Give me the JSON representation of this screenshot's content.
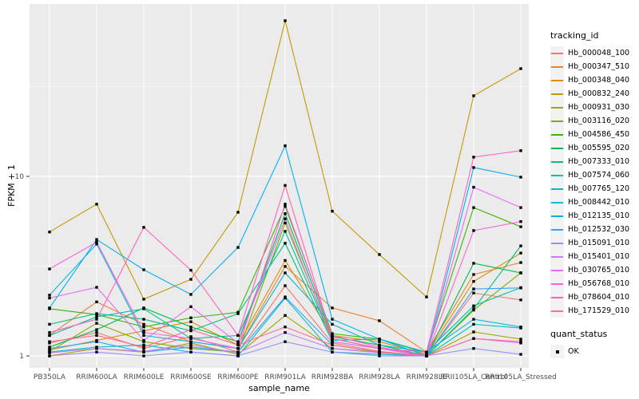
{
  "theme": {
    "outer_bg": "#FFFFFF",
    "panel_bg": "#EBEBEB",
    "grid_color": "#FFFFFF",
    "legend_key_bg": "#F2F2F2",
    "tick_label_color": "#4D4D4D",
    "tick_mark_color": "#333333",
    "point_color": "#000000"
  },
  "chart_data": {
    "type": "line",
    "title": "",
    "xlabel": "sample_name",
    "ylabel": "FPKM + 1",
    "y_scale": "log10",
    "y_tick_labels": [
      "1",
      "10"
    ],
    "y_ticks": [
      1,
      10
    ],
    "y_minor_ticks": [
      3.1623,
      31.623
    ],
    "ylim": [
      0.95,
      90
    ],
    "grid": true,
    "legend_position": "right",
    "legend_title": "tracking_id",
    "point_marker": "black-square",
    "quant_legend": {
      "title": "quant_status",
      "items": [
        "OK"
      ]
    },
    "x_categories": [
      "PB350LA",
      "RRIM600LA",
      "RRIM600LE",
      "RRIM600SE",
      "RRIM600PE",
      "RRIM901LA",
      "RRIM928BA",
      "RRIM928LA",
      "RRIM928LE",
      "RRII105LA_Control",
      "RRII105LA_Stressed"
    ],
    "series": [
      {
        "name": "Hb_000048_100",
        "color": "#F8766D",
        "values": [
          1.18,
          1.35,
          1.1,
          1.28,
          1.05,
          2.46,
          1.18,
          1.06,
          1.0,
          2.24,
          2.05
        ]
      },
      {
        "name": "Hb_000347_510",
        "color": "#EA8331",
        "values": [
          1.3,
          2.0,
          1.5,
          1.2,
          1.1,
          3.15,
          1.85,
          1.57,
          1.05,
          2.84,
          3.31
        ]
      },
      {
        "name": "Hb_000348_040",
        "color": "#D89000",
        "values": [
          1.08,
          1.22,
          1.38,
          1.55,
          1.15,
          3.4,
          1.3,
          1.2,
          1.02,
          2.6,
          3.74
        ]
      },
      {
        "name": "Hb_000832_240",
        "color": "#C09B00",
        "values": [
          4.9,
          7.0,
          2.07,
          2.67,
          6.31,
          73.6,
          6.4,
          3.67,
          2.13,
          28.1,
          39.8
        ]
      },
      {
        "name": "Hb_000931_030",
        "color": "#A3A500",
        "values": [
          1.0,
          1.1,
          1.05,
          1.18,
          1.02,
          1.68,
          1.1,
          1.05,
          1.0,
          1.36,
          1.24
        ]
      },
      {
        "name": "Hb_003116_020",
        "color": "#7CAE00",
        "values": [
          1.06,
          1.52,
          1.2,
          1.1,
          1.05,
          5.5,
          1.25,
          1.1,
          1.0,
          1.8,
          2.9
        ]
      },
      {
        "name": "Hb_004586_450",
        "color": "#39B600",
        "values": [
          1.83,
          1.7,
          1.45,
          1.63,
          1.75,
          6.8,
          1.33,
          1.24,
          1.04,
          6.7,
          5.24
        ]
      },
      {
        "name": "Hb_005595_020",
        "color": "#00BB4E",
        "values": [
          1.12,
          1.4,
          1.85,
          1.45,
          1.2,
          6.2,
          1.28,
          1.15,
          1.0,
          3.28,
          2.9
        ]
      },
      {
        "name": "Hb_007333_010",
        "color": "#00BF7D",
        "values": [
          1.5,
          1.72,
          1.6,
          1.38,
          1.72,
          4.24,
          1.2,
          1.1,
          1.0,
          1.83,
          4.1
        ]
      },
      {
        "name": "Hb_007574_060",
        "color": "#00C1A3",
        "values": [
          1.3,
          1.65,
          1.83,
          1.25,
          1.3,
          4.94,
          1.22,
          1.24,
          1.05,
          1.9,
          2.4
        ]
      },
      {
        "name": "Hb_007765_120",
        "color": "#00BFC4",
        "values": [
          1.05,
          1.12,
          1.15,
          1.05,
          1.0,
          2.1,
          1.05,
          1.02,
          1.0,
          1.5,
          1.43
        ]
      },
      {
        "name": "Hb_008442_010",
        "color": "#00BAE0",
        "values": [
          2.18,
          4.2,
          1.3,
          1.2,
          1.1,
          2.9,
          1.5,
          1.15,
          1.05,
          1.6,
          1.45
        ]
      },
      {
        "name": "Hb_012135_010",
        "color": "#00B0F6",
        "values": [
          1.85,
          4.45,
          3.02,
          2.2,
          4.02,
          14.8,
          1.6,
          1.24,
          1.0,
          11.2,
          9.9
        ]
      },
      {
        "name": "Hb_012532_030",
        "color": "#35A2FF",
        "values": [
          1.1,
          1.2,
          1.05,
          1.12,
          1.05,
          2.13,
          1.15,
          1.05,
          1.0,
          2.36,
          2.39
        ]
      },
      {
        "name": "Hb_015091_010",
        "color": "#9590FF",
        "values": [
          1.0,
          1.05,
          1.0,
          1.05,
          1.0,
          1.2,
          1.05,
          1.0,
          1.0,
          1.1,
          1.02
        ]
      },
      {
        "name": "Hb_015401_010",
        "color": "#C77CFF",
        "values": [
          1.04,
          1.1,
          1.06,
          1.15,
          1.04,
          1.35,
          1.1,
          1.04,
          1.0,
          1.25,
          1.18
        ]
      },
      {
        "name": "Hb_030765_010",
        "color": "#E76BF3",
        "values": [
          2.1,
          2.41,
          1.22,
          1.88,
          1.18,
          5.8,
          1.2,
          1.1,
          1.0,
          8.7,
          6.7
        ]
      },
      {
        "name": "Hb_056768_010",
        "color": "#FA62DB",
        "values": [
          3.05,
          4.3,
          1.35,
          1.25,
          1.1,
          7.0,
          1.3,
          1.12,
          1.0,
          4.99,
          5.6
        ]
      },
      {
        "name": "Hb_078604_010",
        "color": "#FF62BC",
        "values": [
          1.35,
          1.6,
          5.2,
          3.0,
          1.3,
          8.9,
          1.25,
          1.1,
          1.05,
          12.8,
          13.9
        ]
      },
      {
        "name": "Hb_171529_010",
        "color": "#FF6A98",
        "values": [
          1.2,
          1.3,
          1.12,
          1.4,
          1.15,
          1.45,
          1.15,
          1.05,
          1.0,
          1.25,
          1.2
        ]
      }
    ]
  }
}
